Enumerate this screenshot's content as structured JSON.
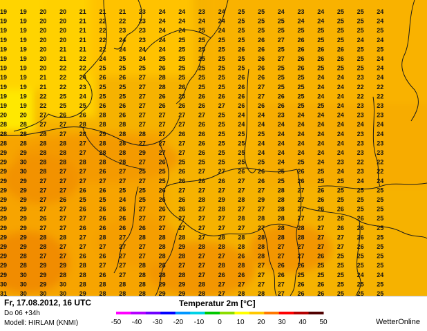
{
  "footer": {
    "date": "Fr, 17.08.2012, 16 UTC",
    "lead": "Do 06 +34h",
    "model": "Modell: HIRLAM (KNMI)",
    "title": "Temperatur 2m [°C]",
    "brand": "WetterOnline"
  },
  "legend": {
    "ticks": [
      "-50",
      "-40",
      "-30",
      "-20",
      "-10",
      "0",
      "10",
      "20",
      "30",
      "40",
      "50"
    ],
    "colors": [
      "#ff00ff",
      "#b400ff",
      "#6e00ff",
      "#0000ff",
      "#0096ff",
      "#00d2e6",
      "#00c800",
      "#8cdc00",
      "#ffff00",
      "#ffc800",
      "#ff7800",
      "#ff0000",
      "#b40000",
      "#500000"
    ]
  },
  "grid_values": [
    [
      "19",
      "19",
      "20",
      "20",
      "21",
      "21",
      "21",
      "23",
      "24",
      "24",
      "23",
      "24",
      "25",
      "25",
      "24",
      "23",
      "24",
      "25",
      "25",
      "24"
    ],
    [
      "19",
      "19",
      "20",
      "20",
      "21",
      "22",
      "22",
      "23",
      "24",
      "24",
      "24",
      "24",
      "25",
      "25",
      "25",
      "24",
      "24",
      "25",
      "25",
      "24"
    ],
    [
      "19",
      "19",
      "20",
      "20",
      "21",
      "22",
      "23",
      "23",
      "24",
      "24",
      "25",
      "24",
      "25",
      "25",
      "25",
      "25",
      "25",
      "25",
      "25",
      "25"
    ],
    [
      "19",
      "19",
      "20",
      "20",
      "21",
      "22",
      "24",
      "23",
      "24",
      "25",
      "25",
      "25",
      "25",
      "26",
      "27",
      "26",
      "25",
      "25",
      "24",
      "24"
    ],
    [
      "19",
      "19",
      "20",
      "21",
      "21",
      "22",
      "24",
      "24",
      "24",
      "25",
      "25",
      "25",
      "26",
      "26",
      "25",
      "26",
      "26",
      "26",
      "25",
      "25"
    ],
    [
      "19",
      "19",
      "20",
      "21",
      "22",
      "24",
      "25",
      "24",
      "25",
      "25",
      "25",
      "25",
      "25",
      "26",
      "27",
      "26",
      "26",
      "26",
      "25",
      "24"
    ],
    [
      "19",
      "19",
      "20",
      "22",
      "22",
      "25",
      "25",
      "25",
      "26",
      "25",
      "25",
      "25",
      "25",
      "26",
      "25",
      "26",
      "25",
      "25",
      "25",
      "24"
    ],
    [
      "19",
      "19",
      "21",
      "22",
      "24",
      "26",
      "26",
      "27",
      "28",
      "25",
      "25",
      "25",
      "26",
      "26",
      "25",
      "25",
      "24",
      "24",
      "23",
      "24"
    ],
    [
      "19",
      "19",
      "21",
      "22",
      "23",
      "25",
      "25",
      "27",
      "28",
      "26",
      "25",
      "25",
      "26",
      "27",
      "25",
      "25",
      "24",
      "24",
      "22",
      "22"
    ],
    [
      "19",
      "19",
      "22",
      "25",
      "24",
      "25",
      "25",
      "27",
      "26",
      "25",
      "26",
      "26",
      "26",
      "27",
      "26",
      "25",
      "24",
      "24",
      "22",
      "22"
    ],
    [
      "19",
      "19",
      "22",
      "25",
      "25",
      "26",
      "26",
      "27",
      "26",
      "26",
      "26",
      "27",
      "26",
      "26",
      "26",
      "25",
      "25",
      "24",
      "23",
      "23"
    ],
    [
      "20",
      "20",
      "27",
      "26",
      "26",
      "28",
      "26",
      "27",
      "27",
      "27",
      "27",
      "25",
      "24",
      "24",
      "23",
      "24",
      "24",
      "24",
      "23",
      "23"
    ],
    [
      "28",
      "28",
      "27",
      "27",
      "28",
      "28",
      "28",
      "27",
      "27",
      "27",
      "26",
      "25",
      "24",
      "24",
      "24",
      "24",
      "24",
      "24",
      "24",
      "24"
    ],
    [
      "28",
      "28",
      "28",
      "27",
      "28",
      "29",
      "28",
      "28",
      "27",
      "26",
      "26",
      "25",
      "25",
      "25",
      "24",
      "24",
      "24",
      "24",
      "23",
      "24"
    ],
    [
      "28",
      "28",
      "28",
      "28",
      "27",
      "28",
      "28",
      "27",
      "27",
      "27",
      "26",
      "25",
      "25",
      "24",
      "24",
      "24",
      "24",
      "24",
      "23",
      "23"
    ],
    [
      "29",
      "29",
      "28",
      "28",
      "27",
      "28",
      "28",
      "29",
      "27",
      "27",
      "26",
      "25",
      "25",
      "24",
      "24",
      "24",
      "24",
      "24",
      "23",
      "23"
    ],
    [
      "29",
      "30",
      "28",
      "28",
      "28",
      "28",
      "28",
      "27",
      "26",
      "25",
      "25",
      "25",
      "25",
      "25",
      "24",
      "25",
      "24",
      "23",
      "22",
      "22"
    ],
    [
      "29",
      "30",
      "28",
      "27",
      "27",
      "26",
      "27",
      "25",
      "25",
      "26",
      "27",
      "27",
      "26",
      "26",
      "25",
      "26",
      "25",
      "24",
      "23",
      "22"
    ],
    [
      "29",
      "29",
      "27",
      "27",
      "27",
      "27",
      "27",
      "27",
      "25",
      "26",
      "26",
      "26",
      "27",
      "26",
      "25",
      "26",
      "25",
      "25",
      "24",
      "24"
    ],
    [
      "29",
      "29",
      "27",
      "27",
      "26",
      "26",
      "25",
      "25",
      "26",
      "27",
      "27",
      "27",
      "27",
      "27",
      "28",
      "27",
      "26",
      "25",
      "25",
      "25"
    ],
    [
      "29",
      "29",
      "27",
      "26",
      "25",
      "25",
      "24",
      "25",
      "26",
      "26",
      "28",
      "29",
      "28",
      "29",
      "28",
      "27",
      "26",
      "25",
      "25",
      "25"
    ],
    [
      "29",
      "29",
      "27",
      "27",
      "26",
      "26",
      "26",
      "27",
      "26",
      "26",
      "27",
      "28",
      "27",
      "27",
      "28",
      "27",
      "26",
      "26",
      "25",
      "25"
    ],
    [
      "29",
      "29",
      "26",
      "27",
      "27",
      "26",
      "26",
      "27",
      "27",
      "27",
      "27",
      "27",
      "28",
      "28",
      "28",
      "27",
      "27",
      "26",
      "26",
      "25"
    ],
    [
      "29",
      "29",
      "27",
      "27",
      "26",
      "26",
      "26",
      "26",
      "27",
      "27",
      "27",
      "27",
      "27",
      "27",
      "28",
      "28",
      "27",
      "26",
      "26",
      "25"
    ],
    [
      "29",
      "29",
      "28",
      "28",
      "27",
      "28",
      "27",
      "28",
      "28",
      "28",
      "27",
      "28",
      "28",
      "28",
      "28",
      "28",
      "27",
      "27",
      "26",
      "25"
    ],
    [
      "29",
      "29",
      "28",
      "27",
      "27",
      "27",
      "27",
      "27",
      "28",
      "29",
      "28",
      "28",
      "28",
      "28",
      "27",
      "27",
      "27",
      "27",
      "26",
      "25"
    ],
    [
      "29",
      "28",
      "27",
      "27",
      "26",
      "26",
      "27",
      "27",
      "28",
      "28",
      "27",
      "27",
      "26",
      "28",
      "27",
      "27",
      "26",
      "25",
      "25",
      "25"
    ],
    [
      "29",
      "28",
      "29",
      "29",
      "28",
      "27",
      "27",
      "28",
      "28",
      "27",
      "27",
      "28",
      "28",
      "27",
      "26",
      "26",
      "25",
      "25",
      "25",
      "25"
    ],
    [
      "29",
      "30",
      "29",
      "28",
      "28",
      "26",
      "27",
      "28",
      "28",
      "28",
      "27",
      "26",
      "26",
      "27",
      "26",
      "25",
      "25",
      "25",
      "24",
      "24"
    ],
    [
      "30",
      "30",
      "29",
      "30",
      "28",
      "28",
      "28",
      "28",
      "29",
      "29",
      "28",
      "27",
      "27",
      "27",
      "27",
      "26",
      "26",
      "25",
      "25",
      "25"
    ],
    [
      "31",
      "30",
      "30",
      "30",
      "29",
      "28",
      "28",
      "28",
      "29",
      "29",
      "28",
      "27",
      "28",
      "28",
      "27",
      "26",
      "26",
      "25",
      "25",
      "25"
    ]
  ]
}
